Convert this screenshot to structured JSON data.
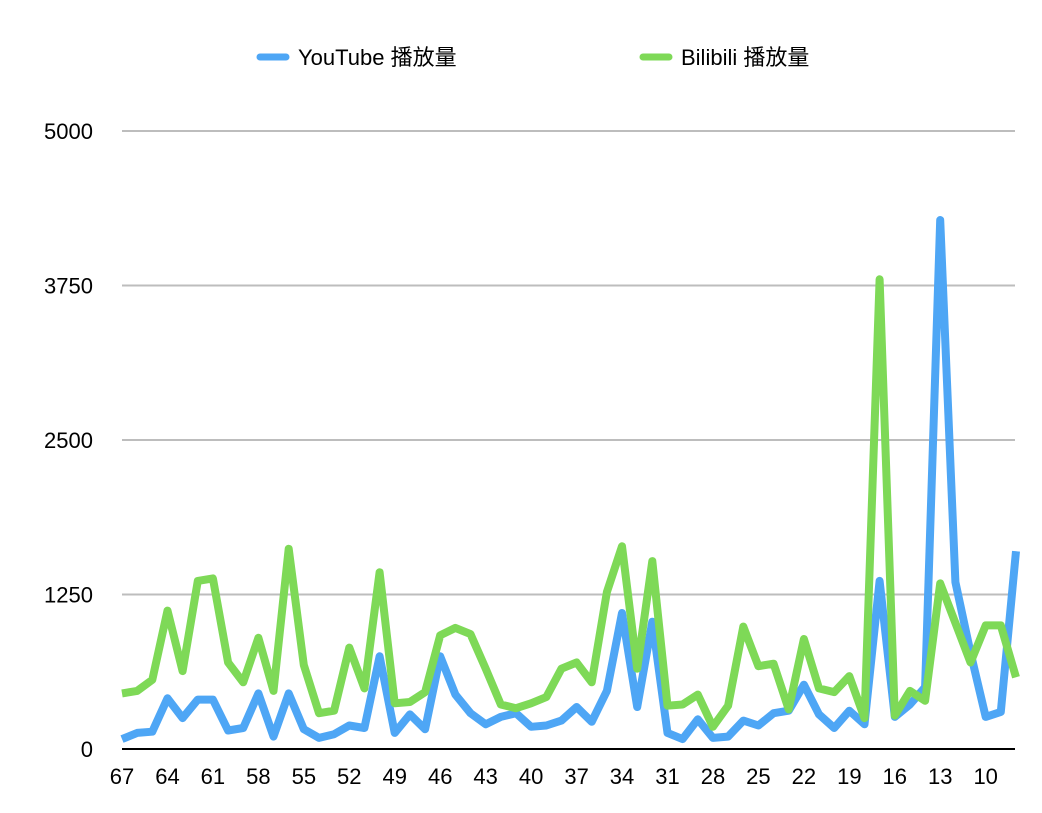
{
  "chart_data": {
    "type": "line",
    "legend_position": "top",
    "grid": true,
    "ylim": [
      0,
      5000
    ],
    "y_ticks": [
      "0",
      "1250",
      "2500",
      "3750",
      "5000"
    ],
    "x": [
      67,
      66,
      65,
      64,
      63,
      62,
      61,
      60,
      59,
      58,
      57,
      56,
      55,
      54,
      53,
      52,
      51,
      50,
      49,
      48,
      47,
      46,
      45,
      44,
      43,
      42,
      41,
      40,
      39,
      38,
      37,
      36,
      35,
      34,
      33,
      32,
      31,
      30,
      29,
      28,
      27,
      26,
      25,
      24,
      23,
      22,
      21,
      20,
      19,
      18,
      17,
      16,
      15,
      14,
      13,
      12,
      11,
      10,
      9,
      8
    ],
    "x_tick_labels": [
      "67",
      "64",
      "61",
      "58",
      "55",
      "52",
      "49",
      "46",
      "43",
      "40",
      "37",
      "34",
      "31",
      "28",
      "25",
      "22",
      "19",
      "16",
      "13",
      "10"
    ],
    "series": [
      {
        "name": "YouTube 播放量",
        "color": "#4ea6f5",
        "values": [
          80,
          130,
          140,
          410,
          250,
          400,
          400,
          150,
          170,
          450,
          100,
          450,
          160,
          90,
          120,
          190,
          170,
          750,
          130,
          280,
          160,
          750,
          440,
          290,
          200,
          260,
          290,
          180,
          190,
          230,
          340,
          220,
          470,
          1100,
          340,
          1030,
          130,
          80,
          240,
          90,
          100,
          230,
          190,
          290,
          310,
          520,
          280,
          170,
          310,
          200,
          1360,
          260,
          360,
          500,
          4280,
          1350,
          780,
          260,
          300,
          1600
        ]
      },
      {
        "name": "Bilibili 播放量",
        "color": "#7ed957",
        "values": [
          450,
          470,
          560,
          1120,
          630,
          1360,
          1380,
          700,
          540,
          900,
          470,
          1620,
          680,
          290,
          310,
          820,
          490,
          1430,
          370,
          380,
          460,
          920,
          980,
          930,
          650,
          360,
          330,
          370,
          420,
          650,
          700,
          540,
          1270,
          1640,
          650,
          1520,
          350,
          360,
          440,
          180,
          350,
          990,
          670,
          690,
          320,
          890,
          490,
          460,
          590,
          250,
          3800,
          270,
          470,
          390,
          1340,
          1020,
          700,
          1000,
          1000,
          580
        ]
      }
    ]
  }
}
